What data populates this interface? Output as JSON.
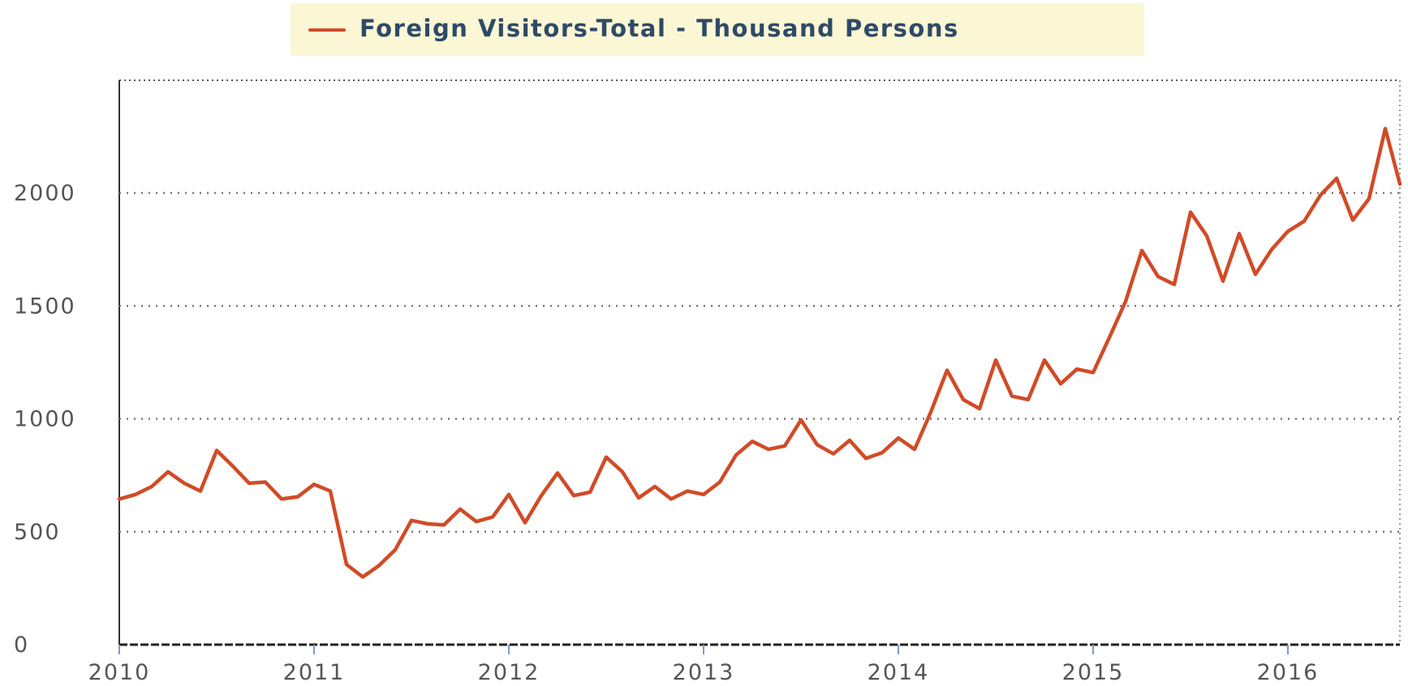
{
  "chart_data": {
    "type": "line",
    "title": "",
    "xlabel": "",
    "ylabel": "",
    "legend": {
      "placement": "top-center",
      "background": "#fbf7d4"
    },
    "grid": {
      "y": true,
      "style": "dotted"
    },
    "xlim": [
      "2010-01",
      "2016-08"
    ],
    "ylim": [
      0,
      2500
    ],
    "y_ticks": [
      0,
      500,
      1000,
      1500,
      2000
    ],
    "y_tick_labels": [
      "0",
      "500",
      "1000",
      "1500",
      "2000"
    ],
    "x_ticks": [
      "2010-01",
      "2011-01",
      "2012-01",
      "2013-01",
      "2014-01",
      "2015-01",
      "2016-01"
    ],
    "x_tick_labels": [
      "2010",
      "2011",
      "2012",
      "2013",
      "2014",
      "2015",
      "2016"
    ],
    "colors": {
      "series": "#d14b27",
      "legend_text": "#2f4a68",
      "tick_text": "#555555"
    },
    "series": [
      {
        "name": "Foreign Visitors-Total - Thousand Persons",
        "x": [
          "2010-01",
          "2010-02",
          "2010-03",
          "2010-04",
          "2010-05",
          "2010-06",
          "2010-07",
          "2010-08",
          "2010-09",
          "2010-10",
          "2010-11",
          "2010-12",
          "2011-01",
          "2011-02",
          "2011-03",
          "2011-04",
          "2011-05",
          "2011-06",
          "2011-07",
          "2011-08",
          "2011-09",
          "2011-10",
          "2011-11",
          "2011-12",
          "2012-01",
          "2012-02",
          "2012-03",
          "2012-04",
          "2012-05",
          "2012-06",
          "2012-07",
          "2012-08",
          "2012-09",
          "2012-10",
          "2012-11",
          "2012-12",
          "2013-01",
          "2013-02",
          "2013-03",
          "2013-04",
          "2013-05",
          "2013-06",
          "2013-07",
          "2013-08",
          "2013-09",
          "2013-10",
          "2013-11",
          "2013-12",
          "2014-01",
          "2014-02",
          "2014-03",
          "2014-04",
          "2014-05",
          "2014-06",
          "2014-07",
          "2014-08",
          "2014-09",
          "2014-10",
          "2014-11",
          "2014-12",
          "2015-01",
          "2015-02",
          "2015-03",
          "2015-04",
          "2015-05",
          "2015-06",
          "2015-07",
          "2015-08",
          "2015-09",
          "2015-10",
          "2015-11",
          "2015-12",
          "2016-01",
          "2016-02",
          "2016-03",
          "2016-04",
          "2016-05",
          "2016-06",
          "2016-07",
          "2016-08"
        ],
        "values": [
          645,
          665,
          700,
          765,
          715,
          680,
          860,
          790,
          715,
          720,
          645,
          655,
          710,
          680,
          355,
          300,
          350,
          420,
          550,
          535,
          530,
          600,
          545,
          565,
          665,
          540,
          660,
          760,
          660,
          675,
          830,
          765,
          650,
          700,
          645,
          680,
          665,
          720,
          840,
          900,
          865,
          880,
          995,
          885,
          845,
          905,
          825,
          850,
          915,
          865,
          1030,
          1215,
          1085,
          1045,
          1260,
          1100,
          1085,
          1260,
          1155,
          1220,
          1205,
          1360,
          1520,
          1745,
          1630,
          1595,
          1915,
          1810,
          1610,
          1820,
          1640,
          1750,
          1830,
          1875,
          1990,
          2065,
          1880,
          1975,
          2285,
          2040
        ]
      }
    ]
  }
}
